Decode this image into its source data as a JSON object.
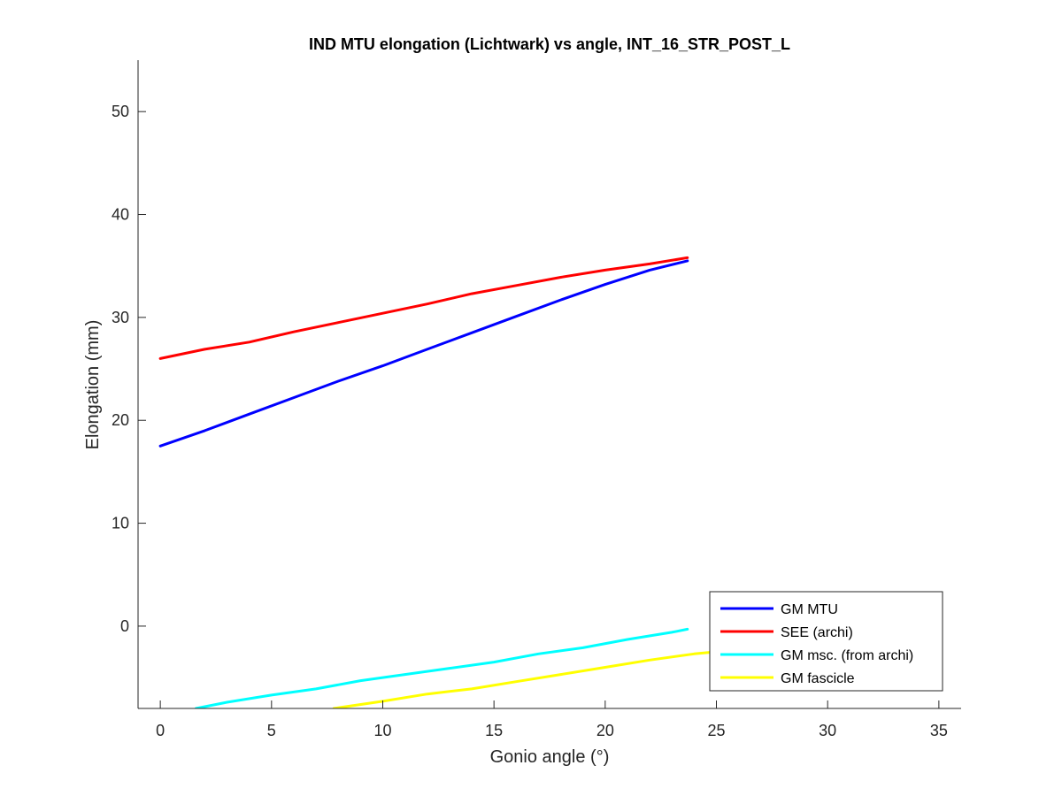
{
  "chart_data": {
    "type": "line",
    "title": "IND MTU elongation (Lichtwark) vs angle, INT_16_STR_POST_L",
    "xlabel": "Gonio angle (°)",
    "ylabel": "Elongation (mm)",
    "xlim": [
      -1,
      36
    ],
    "ylim": [
      -8,
      55
    ],
    "xticks": [
      0,
      5,
      10,
      15,
      20,
      25,
      30,
      35
    ],
    "yticks": [
      0,
      10,
      20,
      30,
      40,
      50
    ],
    "xtick_labels": [
      "0",
      "5",
      "10",
      "15",
      "20",
      "25",
      "30",
      "35"
    ],
    "ytick_labels": [
      "0",
      "10",
      "20",
      "30",
      "40",
      "50"
    ],
    "grid": false,
    "legend_position": "bottom-right",
    "series": [
      {
        "name": "GM MTU",
        "color": "#0000ff",
        "x": [
          0,
          2,
          4,
          6,
          8,
          10,
          12,
          14,
          16,
          18,
          20,
          22,
          23.7
        ],
        "y": [
          17.5,
          19.0,
          20.6,
          22.2,
          23.8,
          25.3,
          26.9,
          28.5,
          30.1,
          31.7,
          33.2,
          34.6,
          35.5
        ]
      },
      {
        "name": "SEE (archi)",
        "color": "#ff0000",
        "x": [
          0,
          2,
          4,
          6,
          8,
          10,
          12,
          14,
          16,
          18,
          20,
          22,
          23.7
        ],
        "y": [
          26.0,
          26.9,
          27.6,
          28.6,
          29.5,
          30.4,
          31.3,
          32.3,
          33.1,
          33.9,
          34.6,
          35.2,
          35.8
        ]
      },
      {
        "name": "GM msc. (from archi)",
        "color": "#00ffff",
        "x": [
          1.6,
          3,
          5,
          7,
          9,
          11,
          13,
          15,
          17,
          19,
          21,
          23,
          23.7
        ],
        "y": [
          -8.0,
          -7.4,
          -6.7,
          -6.1,
          -5.3,
          -4.7,
          -4.1,
          -3.5,
          -2.7,
          -2.1,
          -1.3,
          -0.6,
          -0.3
        ]
      },
      {
        "name": "GM fascicle",
        "color": "#ffff00",
        "x": [
          7.8,
          10,
          12,
          14,
          16,
          18,
          20,
          22,
          24,
          25.5
        ],
        "y": [
          -8.0,
          -7.3,
          -6.6,
          -6.1,
          -5.4,
          -4.7,
          -4.0,
          -3.3,
          -2.7,
          -2.4
        ]
      }
    ]
  }
}
